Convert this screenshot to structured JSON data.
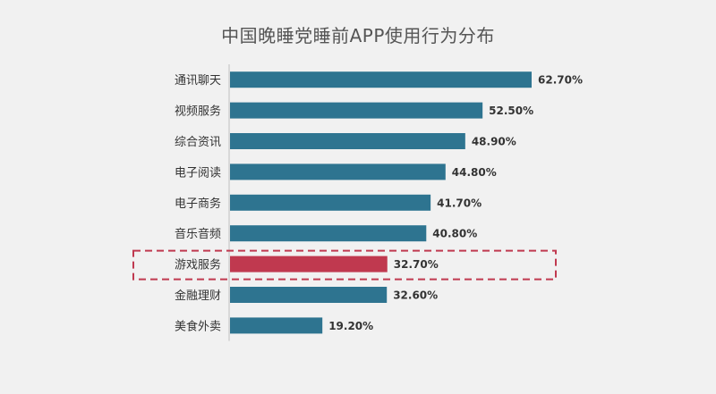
{
  "chart_data": {
    "type": "bar",
    "orientation": "horizontal",
    "title": "中国晚睡党睡前APP使用行为分布",
    "categories": [
      "通讯聊天",
      "视频服务",
      "综合资讯",
      "电子阅读",
      "电子商务",
      "音乐音频",
      "游戏服务",
      "金融理财",
      "美食外卖"
    ],
    "values": [
      62.7,
      52.5,
      48.9,
      44.8,
      41.7,
      40.8,
      32.7,
      32.6,
      19.2
    ],
    "value_labels": [
      "62.70%",
      "52.50%",
      "48.90%",
      "44.80%",
      "41.70%",
      "40.80%",
      "32.70%",
      "32.60%",
      "19.20%"
    ],
    "xlim": [
      0,
      100
    ],
    "grid": false,
    "highlight": {
      "category": "游戏服务",
      "style": "dashed-box",
      "color": "#c0394f"
    },
    "colors": {
      "bar": "#2e7490",
      "highlight_bar": "#c0394f",
      "text": "#333333",
      "axis": "#bfbfbf"
    }
  }
}
